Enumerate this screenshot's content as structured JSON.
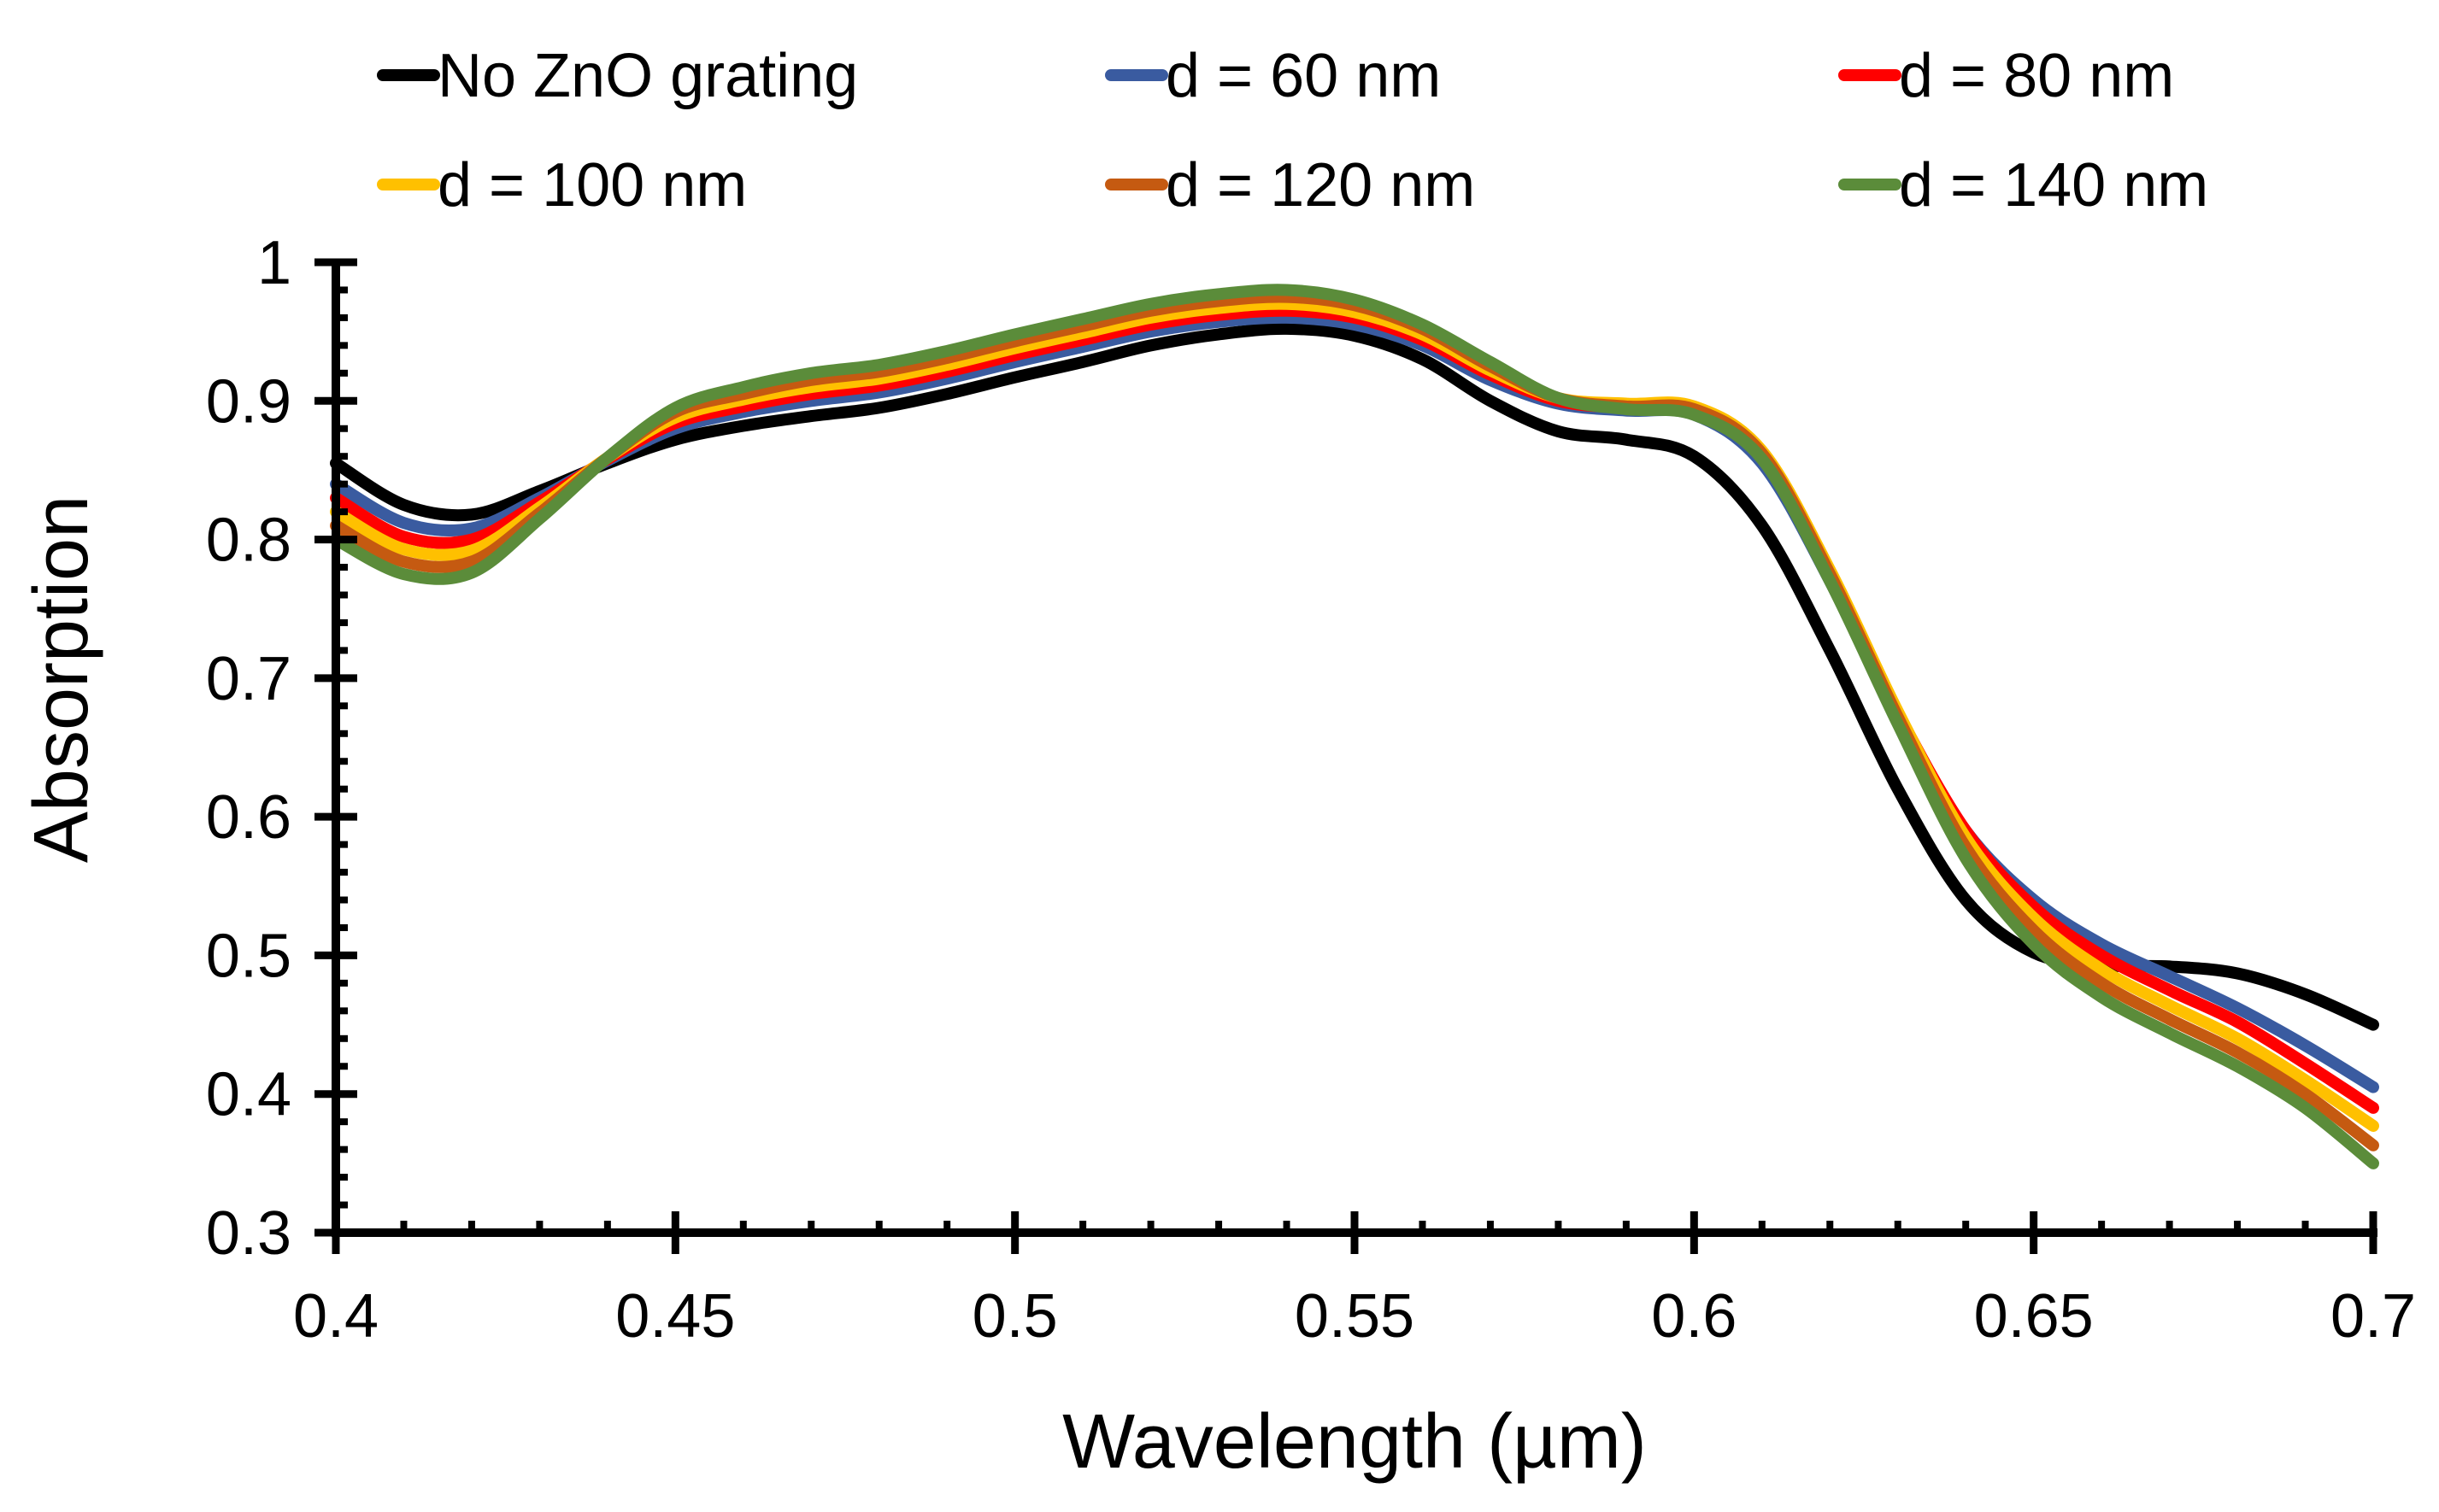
{
  "chart_data": {
    "type": "line",
    "title": "",
    "xlabel": "Wavelength (µm)",
    "ylabel": "Absorption",
    "xlim": [
      0.4,
      0.7
    ],
    "ylim": [
      0.3,
      1.0
    ],
    "xticks": [
      "0.4",
      "0.45",
      "0.5",
      "0.55",
      "0.6",
      "0.65",
      "0.7"
    ],
    "yticks": [
      "0.3",
      "0.4",
      "0.5",
      "0.6",
      "0.7",
      "0.8",
      "0.9",
      "1"
    ],
    "grid": false,
    "legend_position": "top",
    "x": [
      0.4,
      0.41,
      0.42,
      0.43,
      0.44,
      0.45,
      0.46,
      0.47,
      0.48,
      0.49,
      0.5,
      0.51,
      0.52,
      0.53,
      0.54,
      0.55,
      0.56,
      0.57,
      0.58,
      0.59,
      0.6,
      0.61,
      0.62,
      0.63,
      0.64,
      0.65,
      0.66,
      0.67,
      0.68,
      0.69,
      0.7
    ],
    "series": [
      {
        "name": "No ZnO grating",
        "color": "#000000",
        "values": [
          0.855,
          0.825,
          0.818,
          0.835,
          0.855,
          0.872,
          0.882,
          0.889,
          0.895,
          0.905,
          0.917,
          0.928,
          0.94,
          0.948,
          0.952,
          0.947,
          0.93,
          0.9,
          0.878,
          0.872,
          0.86,
          0.81,
          0.72,
          0.62,
          0.54,
          0.502,
          0.493,
          0.492,
          0.487,
          0.472,
          0.45
        ]
      },
      {
        "name": "d = 60 nm",
        "color": "#3A5BA0",
        "values": [
          0.84,
          0.812,
          0.808,
          0.83,
          0.857,
          0.88,
          0.892,
          0.9,
          0.906,
          0.916,
          0.928,
          0.939,
          0.95,
          0.957,
          0.96,
          0.955,
          0.94,
          0.915,
          0.898,
          0.893,
          0.89,
          0.855,
          0.77,
          0.67,
          0.59,
          0.54,
          0.508,
          0.485,
          0.462,
          0.435,
          0.405
        ]
      },
      {
        "name": "d = 80 nm",
        "color": "#FF0000",
        "values": [
          0.83,
          0.802,
          0.8,
          0.827,
          0.858,
          0.884,
          0.896,
          0.905,
          0.911,
          0.921,
          0.933,
          0.944,
          0.955,
          0.962,
          0.965,
          0.96,
          0.944,
          0.919,
          0.9,
          0.895,
          0.893,
          0.86,
          0.775,
          0.675,
          0.59,
          0.535,
          0.5,
          0.475,
          0.452,
          0.422,
          0.39
        ]
      },
      {
        "name": "d = 100 nm",
        "color": "#FFC000",
        "values": [
          0.82,
          0.793,
          0.792,
          0.823,
          0.859,
          0.888,
          0.901,
          0.91,
          0.916,
          0.926,
          0.938,
          0.949,
          0.96,
          0.967,
          0.97,
          0.964,
          0.948,
          0.922,
          0.902,
          0.898,
          0.896,
          0.864,
          0.778,
          0.676,
          0.585,
          0.527,
          0.49,
          0.464,
          0.44,
          0.41,
          0.377
        ]
      },
      {
        "name": "d = 120 nm",
        "color": "#C55A11",
        "values": [
          0.81,
          0.784,
          0.784,
          0.819,
          0.859,
          0.892,
          0.905,
          0.915,
          0.921,
          0.931,
          0.943,
          0.954,
          0.965,
          0.972,
          0.975,
          0.969,
          0.952,
          0.925,
          0.902,
          0.896,
          0.894,
          0.862,
          0.775,
          0.672,
          0.578,
          0.518,
          0.48,
          0.454,
          0.43,
          0.4,
          0.363
        ]
      },
      {
        "name": "d = 140 nm",
        "color": "#5B8C3A",
        "values": [
          0.8,
          0.775,
          0.776,
          0.815,
          0.859,
          0.895,
          0.91,
          0.92,
          0.926,
          0.936,
          0.948,
          0.959,
          0.97,
          0.977,
          0.98,
          0.973,
          0.955,
          0.928,
          0.902,
          0.894,
          0.89,
          0.858,
          0.77,
          0.667,
          0.57,
          0.508,
          0.47,
          0.444,
          0.42,
          0.39,
          0.35
        ]
      }
    ]
  }
}
